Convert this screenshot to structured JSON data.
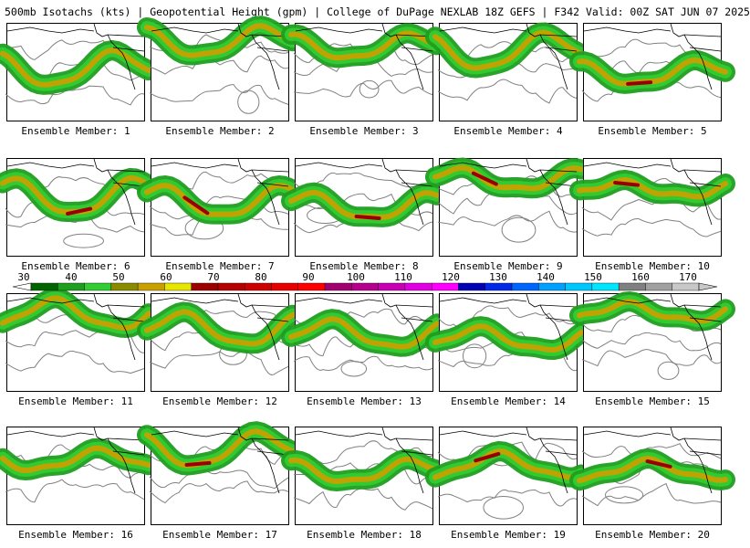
{
  "header": {
    "title": "500mb Isotachs (kts) | Geopotential Height (gpm) | College of DuPage NEXLAB   18Z GEFS | F342 Valid: 00Z SAT JUN 07 2025"
  },
  "members": [
    {
      "label": "Ensemble Member: 1"
    },
    {
      "label": "Ensemble Member: 2"
    },
    {
      "label": "Ensemble Member: 3"
    },
    {
      "label": "Ensemble Member: 4"
    },
    {
      "label": "Ensemble Member: 5"
    },
    {
      "label": "Ensemble Member: 6"
    },
    {
      "label": "Ensemble Member: 7"
    },
    {
      "label": "Ensemble Member: 8"
    },
    {
      "label": "Ensemble Member: 9"
    },
    {
      "label": "Ensemble Member: 10"
    },
    {
      "label": "Ensemble Member: 11"
    },
    {
      "label": "Ensemble Member: 12"
    },
    {
      "label": "Ensemble Member: 13"
    },
    {
      "label": "Ensemble Member: 14"
    },
    {
      "label": "Ensemble Member: 15"
    },
    {
      "label": "Ensemble Member: 16"
    },
    {
      "label": "Ensemble Member: 17"
    },
    {
      "label": "Ensemble Member: 18"
    },
    {
      "label": "Ensemble Member: 19"
    },
    {
      "label": "Ensemble Member: 20"
    }
  ],
  "colorbar": {
    "labels": [
      "30",
      "40",
      "50",
      "60",
      "70",
      "80",
      "90",
      "100",
      "110",
      "120",
      "130",
      "140",
      "150",
      "160",
      "170"
    ],
    "colors": [
      "#006400",
      "#1f9e1f",
      "#32cd32",
      "#8b8b00",
      "#c8a000",
      "#e6e600",
      "#9b0000",
      "#b40000",
      "#cc0000",
      "#e60000",
      "#ff0000",
      "#a00070",
      "#b4008c",
      "#c800b4",
      "#e100e1",
      "#ff00ff",
      "#0000b4",
      "#0028e6",
      "#0064ff",
      "#00a0ff",
      "#00c8ff",
      "#00e6ff",
      "#808080",
      "#a0a0a0",
      "#c8c8c8"
    ]
  },
  "colors": {
    "jet_weak": "#1f9e1f",
    "jet_mid": "#32cd32",
    "jet_core": "#c8a000",
    "jet_max": "#9b0000",
    "height_contour": "#808080",
    "coastline": "#000000"
  }
}
